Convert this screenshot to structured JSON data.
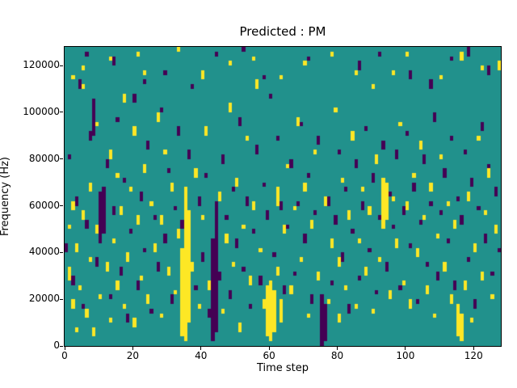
{
  "figure": {
    "title": "Predicted : PM",
    "xlabel": "Time step",
    "ylabel": "Frequency (Hz)"
  },
  "chart_data": {
    "type": "heatmap",
    "title": "Predicted : PM",
    "xlabel": "Time step",
    "ylabel": "Frequency (Hz)",
    "x_range": [
      0,
      128
    ],
    "y_range": [
      0,
      128000
    ],
    "x_ticks": [
      0,
      20,
      40,
      60,
      80,
      100,
      120
    ],
    "y_ticks": [
      0,
      20000,
      40000,
      60000,
      80000,
      100000,
      120000
    ],
    "n_cols": 128,
    "n_rows": 64,
    "hz_per_row": 2000,
    "grid": false,
    "legend": "none",
    "colors": {
      "mid": "#21918c",
      "high": "#fde725",
      "low": "#440154"
    },
    "high_runs": [
      [
        1,
        14,
        16
      ],
      [
        1,
        25,
        25
      ],
      [
        2,
        8,
        9
      ],
      [
        2,
        29,
        30
      ],
      [
        2,
        57,
        57
      ],
      [
        3,
        3,
        3
      ],
      [
        3,
        20,
        21
      ],
      [
        4,
        12,
        12
      ],
      [
        5,
        27,
        28
      ],
      [
        5,
        55,
        55
      ],
      [
        5,
        59,
        59
      ],
      [
        6,
        6,
        7
      ],
      [
        7,
        18,
        18
      ],
      [
        7,
        33,
        34
      ],
      [
        8,
        2,
        3
      ],
      [
        9,
        24,
        25
      ],
      [
        9,
        47,
        47
      ],
      [
        10,
        10,
        10
      ],
      [
        11,
        30,
        31
      ],
      [
        12,
        16,
        17
      ],
      [
        13,
        5,
        5
      ],
      [
        13,
        40,
        41
      ],
      [
        13,
        61,
        61
      ],
      [
        14,
        22,
        22
      ],
      [
        15,
        12,
        13
      ],
      [
        15,
        36,
        36
      ],
      [
        16,
        28,
        29
      ],
      [
        17,
        8,
        8
      ],
      [
        17,
        52,
        53
      ],
      [
        18,
        18,
        19
      ],
      [
        19,
        33,
        33
      ],
      [
        20,
        4,
        5
      ],
      [
        20,
        45,
        46
      ],
      [
        21,
        26,
        27
      ],
      [
        21,
        62,
        62
      ],
      [
        22,
        14,
        14
      ],
      [
        23,
        37,
        38
      ],
      [
        23,
        58,
        58
      ],
      [
        24,
        9,
        10
      ],
      [
        25,
        30,
        30
      ],
      [
        26,
        20,
        21
      ],
      [
        27,
        48,
        49
      ],
      [
        28,
        6,
        6
      ],
      [
        28,
        26,
        27
      ],
      [
        29,
        41,
        41
      ],
      [
        30,
        15,
        16
      ],
      [
        31,
        33,
        34
      ],
      [
        32,
        11,
        11
      ],
      [
        33,
        23,
        24
      ],
      [
        33,
        63,
        63
      ],
      [
        34,
        2,
        20
      ],
      [
        35,
        1,
        33
      ],
      [
        36,
        5,
        28
      ],
      [
        37,
        16,
        17
      ],
      [
        38,
        36,
        37
      ],
      [
        39,
        8,
        8
      ],
      [
        40,
        27,
        27
      ],
      [
        40,
        57,
        58
      ],
      [
        41,
        45,
        46
      ],
      [
        42,
        12,
        13
      ],
      [
        45,
        31,
        32
      ],
      [
        46,
        7,
        7
      ],
      [
        47,
        22,
        23
      ],
      [
        48,
        50,
        51
      ],
      [
        48,
        60,
        60
      ],
      [
        49,
        17,
        17
      ],
      [
        50,
        34,
        35
      ],
      [
        51,
        3,
        4
      ],
      [
        52,
        25,
        25
      ],
      [
        53,
        44,
        44
      ],
      [
        54,
        13,
        14
      ],
      [
        55,
        29,
        30
      ],
      [
        55,
        61,
        61
      ],
      [
        56,
        55,
        56
      ],
      [
        57,
        20,
        20
      ],
      [
        58,
        8,
        9
      ],
      [
        59,
        2,
        12
      ],
      [
        60,
        1,
        13
      ],
      [
        61,
        3,
        11
      ],
      [
        62,
        15,
        16
      ],
      [
        62,
        30,
        33
      ],
      [
        63,
        5,
        9
      ],
      [
        63,
        57,
        57
      ],
      [
        64,
        24,
        25
      ],
      [
        65,
        38,
        38
      ],
      [
        66,
        11,
        12
      ],
      [
        67,
        29,
        29
      ],
      [
        68,
        47,
        48
      ],
      [
        69,
        18,
        18
      ],
      [
        70,
        33,
        34
      ],
      [
        70,
        60,
        60
      ],
      [
        71,
        6,
        6
      ],
      [
        72,
        25,
        26
      ],
      [
        73,
        41,
        41
      ],
      [
        74,
        14,
        15
      ],
      [
        76,
        30,
        31
      ],
      [
        77,
        9,
        9
      ],
      [
        78,
        21,
        22
      ],
      [
        78,
        62,
        62
      ],
      [
        79,
        50,
        50
      ],
      [
        80,
        5,
        6
      ],
      [
        80,
        17,
        18
      ],
      [
        81,
        35,
        35
      ],
      [
        82,
        12,
        12
      ],
      [
        83,
        27,
        28
      ],
      [
        84,
        44,
        45
      ],
      [
        85,
        8,
        8
      ],
      [
        85,
        58,
        58
      ],
      [
        86,
        22,
        22
      ],
      [
        87,
        33,
        33
      ],
      [
        88,
        15,
        16
      ],
      [
        89,
        28,
        29
      ],
      [
        90,
        7,
        7
      ],
      [
        90,
        55,
        55
      ],
      [
        91,
        39,
        40
      ],
      [
        92,
        18,
        18
      ],
      [
        93,
        25,
        35
      ],
      [
        94,
        27,
        34
      ],
      [
        95,
        10,
        11
      ],
      [
        96,
        31,
        31
      ],
      [
        96,
        58,
        58
      ],
      [
        97,
        21,
        22
      ],
      [
        98,
        47,
        47
      ],
      [
        99,
        13,
        13
      ],
      [
        100,
        29,
        30
      ],
      [
        100,
        62,
        62
      ],
      [
        101,
        8,
        9
      ],
      [
        102,
        36,
        36
      ],
      [
        103,
        19,
        20
      ],
      [
        104,
        42,
        43
      ],
      [
        105,
        27,
        27
      ],
      [
        106,
        11,
        12
      ],
      [
        107,
        33,
        34
      ],
      [
        108,
        6,
        6
      ],
      [
        109,
        23,
        23
      ],
      [
        110,
        40,
        40
      ],
      [
        110,
        57,
        57
      ],
      [
        111,
        16,
        17
      ],
      [
        112,
        30,
        30
      ],
      [
        113,
        9,
        10
      ],
      [
        114,
        25,
        26
      ],
      [
        115,
        2,
        8
      ],
      [
        116,
        1,
        6
      ],
      [
        116,
        61,
        62
      ],
      [
        117,
        12,
        13
      ],
      [
        118,
        31,
        32
      ],
      [
        119,
        5,
        5
      ],
      [
        120,
        20,
        21
      ],
      [
        121,
        44,
        44
      ],
      [
        122,
        14,
        15
      ],
      [
        122,
        59,
        59
      ],
      [
        123,
        28,
        28
      ],
      [
        124,
        36,
        37
      ],
      [
        125,
        10,
        10
      ],
      [
        126,
        24,
        25
      ],
      [
        127,
        59,
        60
      ]
    ],
    "low_runs": [
      [
        0,
        20,
        21
      ],
      [
        1,
        40,
        40
      ],
      [
        2,
        13,
        14
      ],
      [
        3,
        30,
        31
      ],
      [
        4,
        55,
        56
      ],
      [
        5,
        8,
        8
      ],
      [
        6,
        25,
        26
      ],
      [
        6,
        62,
        62
      ],
      [
        7,
        44,
        45
      ],
      [
        8,
        45,
        52
      ],
      [
        9,
        17,
        18
      ],
      [
        10,
        22,
        32
      ],
      [
        11,
        24,
        33
      ],
      [
        12,
        38,
        39
      ],
      [
        13,
        10,
        10
      ],
      [
        14,
        28,
        29
      ],
      [
        14,
        60,
        61
      ],
      [
        15,
        48,
        48
      ],
      [
        16,
        15,
        16
      ],
      [
        17,
        35,
        35
      ],
      [
        18,
        5,
        6
      ],
      [
        19,
        24,
        24
      ],
      [
        20,
        52,
        53
      ],
      [
        21,
        12,
        13
      ],
      [
        22,
        31,
        32
      ],
      [
        23,
        20,
        20
      ],
      [
        23,
        56,
        56
      ],
      [
        24,
        42,
        43
      ],
      [
        25,
        7,
        7
      ],
      [
        26,
        27,
        27
      ],
      [
        27,
        16,
        17
      ],
      [
        28,
        50,
        50
      ],
      [
        29,
        22,
        23
      ],
      [
        29,
        58,
        58
      ],
      [
        30,
        37,
        37
      ],
      [
        31,
        9,
        10
      ],
      [
        32,
        29,
        29
      ],
      [
        33,
        45,
        46
      ],
      [
        34,
        25,
        26
      ],
      [
        36,
        40,
        41
      ],
      [
        37,
        55,
        55
      ],
      [
        38,
        12,
        12
      ],
      [
        39,
        30,
        31
      ],
      [
        40,
        18,
        19
      ],
      [
        41,
        36,
        36
      ],
      [
        42,
        6,
        7
      ],
      [
        43,
        1,
        22
      ],
      [
        44,
        3,
        30
      ],
      [
        44,
        62,
        62
      ],
      [
        45,
        14,
        15
      ],
      [
        46,
        39,
        40
      ],
      [
        47,
        27,
        27
      ],
      [
        48,
        10,
        11
      ],
      [
        49,
        33,
        33
      ],
      [
        50,
        21,
        22
      ],
      [
        51,
        47,
        48
      ],
      [
        52,
        16,
        16
      ],
      [
        52,
        63,
        63
      ],
      [
        53,
        30,
        31
      ],
      [
        54,
        8,
        8
      ],
      [
        55,
        24,
        24
      ],
      [
        56,
        41,
        42
      ],
      [
        57,
        13,
        14
      ],
      [
        58,
        34,
        34
      ],
      [
        58,
        57,
        57
      ],
      [
        59,
        27,
        28
      ],
      [
        60,
        53,
        53
      ],
      [
        61,
        19,
        19
      ],
      [
        62,
        44,
        44
      ],
      [
        63,
        29,
        30
      ],
      [
        64,
        11,
        12
      ],
      [
        65,
        25,
        25
      ],
      [
        66,
        38,
        39
      ],
      [
        67,
        15,
        15
      ],
      [
        68,
        30,
        30
      ],
      [
        69,
        47,
        47
      ],
      [
        70,
        22,
        23
      ],
      [
        71,
        36,
        36
      ],
      [
        71,
        61,
        61
      ],
      [
        72,
        9,
        10
      ],
      [
        73,
        28,
        28
      ],
      [
        74,
        43,
        44
      ],
      [
        75,
        0,
        10
      ],
      [
        76,
        1,
        8
      ],
      [
        77,
        30,
        31
      ],
      [
        78,
        13,
        13
      ],
      [
        79,
        26,
        27
      ],
      [
        80,
        41,
        41
      ],
      [
        81,
        18,
        19
      ],
      [
        82,
        33,
        33
      ],
      [
        83,
        7,
        8
      ],
      [
        84,
        24,
        24
      ],
      [
        85,
        38,
        39
      ],
      [
        86,
        14,
        14
      ],
      [
        86,
        59,
        60
      ],
      [
        87,
        29,
        30
      ],
      [
        88,
        46,
        46
      ],
      [
        89,
        20,
        20
      ],
      [
        90,
        35,
        36
      ],
      [
        91,
        11,
        11
      ],
      [
        92,
        27,
        27
      ],
      [
        92,
        62,
        62
      ],
      [
        93,
        42,
        43
      ],
      [
        94,
        16,
        17
      ],
      [
        95,
        32,
        32
      ],
      [
        96,
        25,
        25
      ],
      [
        97,
        40,
        41
      ],
      [
        98,
        12,
        12
      ],
      [
        99,
        28,
        29
      ],
      [
        100,
        45,
        45
      ],
      [
        101,
        21,
        21
      ],
      [
        101,
        57,
        58
      ],
      [
        102,
        33,
        34
      ],
      [
        103,
        9,
        9
      ],
      [
        104,
        26,
        26
      ],
      [
        105,
        39,
        40
      ],
      [
        106,
        17,
        17
      ],
      [
        107,
        30,
        30
      ],
      [
        107,
        55,
        56
      ],
      [
        108,
        48,
        49
      ],
      [
        109,
        14,
        15
      ],
      [
        110,
        28,
        28
      ],
      [
        111,
        36,
        37
      ],
      [
        112,
        22,
        22
      ],
      [
        113,
        44,
        44
      ],
      [
        113,
        61,
        61
      ],
      [
        114,
        12,
        13
      ],
      [
        115,
        31,
        31
      ],
      [
        116,
        26,
        27
      ],
      [
        117,
        41,
        41
      ],
      [
        118,
        18,
        18
      ],
      [
        118,
        62,
        63
      ],
      [
        119,
        34,
        35
      ],
      [
        120,
        8,
        9
      ],
      [
        121,
        29,
        29
      ],
      [
        122,
        46,
        47
      ],
      [
        123,
        22,
        23
      ],
      [
        124,
        38,
        38
      ],
      [
        124,
        58,
        59
      ],
      [
        125,
        15,
        15
      ],
      [
        126,
        32,
        33
      ],
      [
        127,
        20,
        20
      ]
    ]
  }
}
